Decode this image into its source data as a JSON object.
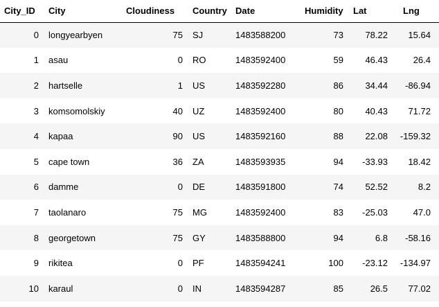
{
  "table": {
    "columns": [
      "City_ID",
      "City",
      "Cloudiness",
      "Country",
      "Date",
      "Humidity",
      "Lat",
      "Lng"
    ],
    "rows": [
      [
        "0",
        "longyearbyen",
        "75",
        "SJ",
        "1483588200",
        "73",
        "78.22",
        "15.64"
      ],
      [
        "1",
        "asau",
        "0",
        "RO",
        "1483592400",
        "59",
        "46.43",
        "26.4"
      ],
      [
        "2",
        "hartselle",
        "1",
        "US",
        "1483592280",
        "86",
        "34.44",
        "-86.94"
      ],
      [
        "3",
        "komsomolskiy",
        "40",
        "UZ",
        "1483592400",
        "80",
        "40.43",
        "71.72"
      ],
      [
        "4",
        "kapaa",
        "90",
        "US",
        "1483592160",
        "88",
        "22.08",
        "-159.32"
      ],
      [
        "5",
        "cape town",
        "36",
        "ZA",
        "1483593935",
        "94",
        "-33.93",
        "18.42"
      ],
      [
        "6",
        "damme",
        "0",
        "DE",
        "1483591800",
        "74",
        "52.52",
        "8.2"
      ],
      [
        "7",
        "taolanaro",
        "75",
        "MG",
        "1483592400",
        "83",
        "-25.03",
        "47.0"
      ],
      [
        "8",
        "georgetown",
        "75",
        "GY",
        "1483588800",
        "94",
        "6.8",
        "-58.16"
      ],
      [
        "9",
        "rikitea",
        "0",
        "PF",
        "1483594241",
        "100",
        "-23.12",
        "-134.97"
      ],
      [
        "10",
        "karaul",
        "0",
        "IN",
        "1483594287",
        "85",
        "26.5",
        "77.02"
      ]
    ]
  },
  "colors": {
    "striped_row": "#f5f5f5",
    "plain_row": "#ffffff",
    "header_rule": "#000000"
  }
}
